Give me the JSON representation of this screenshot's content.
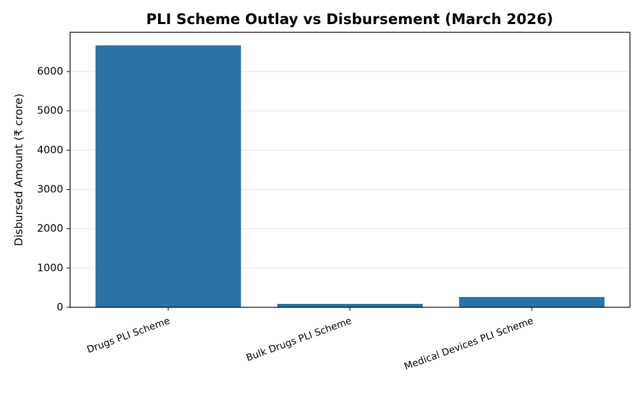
{
  "chart_data": {
    "type": "bar",
    "title": "PLI Scheme Outlay vs Disbursement (March 2026)",
    "y_label": "Disbursed Amount (₹ crore)",
    "categories": [
      "Drugs PLI Scheme",
      "Bulk Drugs PLI Scheme",
      "Medical Devices PLI Scheme"
    ],
    "values": [
      6664,
      87,
      262
    ],
    "color": "#2a73a6",
    "ylim": [
      0,
      6997
    ],
    "yticks": [
      0,
      1000,
      2000,
      3000,
      4000,
      5000,
      6000
    ],
    "grid": true
  }
}
